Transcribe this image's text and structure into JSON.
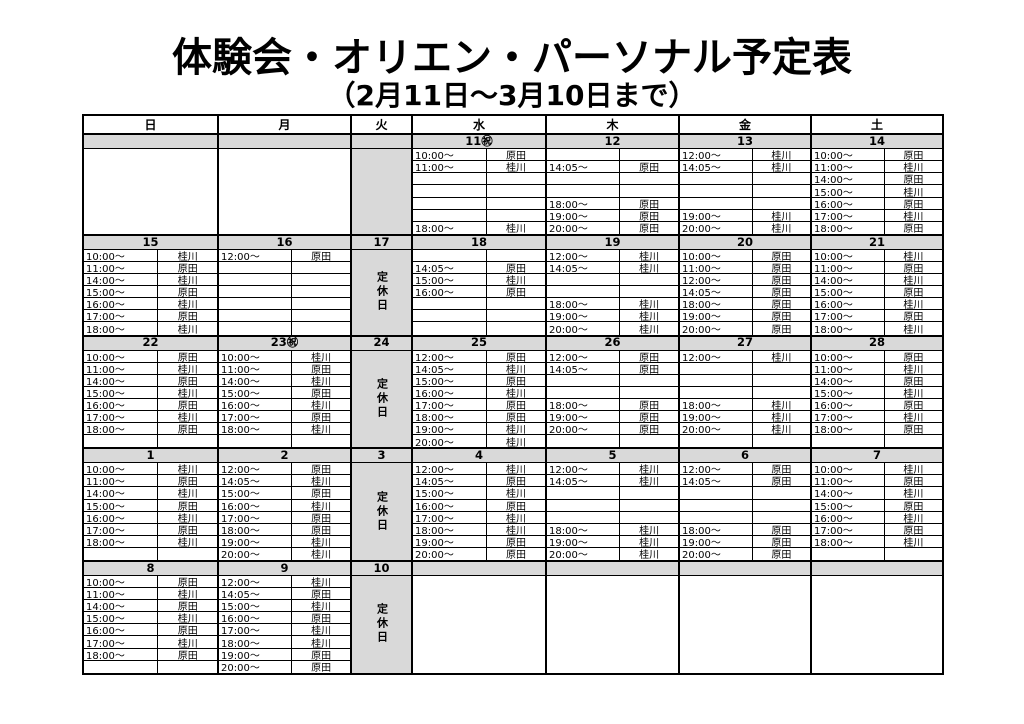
{
  "title": "体験会・オリエン・パーソナル予定表",
  "subtitle": "（2月11日～3月10日まで）",
  "day_headers": [
    "日",
    "月",
    "火",
    "水",
    "木",
    "金",
    "土"
  ],
  "closed_label": "定休日",
  "staff": [
    "原田",
    "桂川"
  ],
  "colors": {
    "band_gray": "#d9d9d9",
    "border": "#000000",
    "text": "#000000"
  },
  "weeks": [
    {
      "rows": 7,
      "days": [
        {
          "date": "",
          "type": "blank"
        },
        {
          "date": "",
          "type": "blank"
        },
        {
          "date": "",
          "type": "closed_blank"
        },
        {
          "date": "11㊗",
          "type": "slots",
          "slots": [
            {
              "t": "10:00～",
              "n": "原田"
            },
            {
              "t": "11:00～",
              "n": "桂川"
            },
            null,
            null,
            null,
            null,
            {
              "t": "18:00～",
              "n": "桂川"
            }
          ]
        },
        {
          "date": "12",
          "type": "slots",
          "slots": [
            null,
            {
              "t": "14:05～",
              "n": "原田"
            },
            null,
            null,
            {
              "t": "18:00～",
              "n": "原田"
            },
            {
              "t": "19:00～",
              "n": "原田"
            },
            {
              "t": "20:00～",
              "n": "原田"
            }
          ]
        },
        {
          "date": "13",
          "type": "slots",
          "slots": [
            {
              "t": "12:00～",
              "n": "桂川"
            },
            {
              "t": "14:05～",
              "n": "桂川"
            },
            null,
            null,
            null,
            {
              "t": "19:00～",
              "n": "桂川"
            },
            {
              "t": "20:00～",
              "n": "桂川"
            }
          ]
        },
        {
          "date": "14",
          "type": "slots",
          "slots": [
            {
              "t": "10:00～",
              "n": "原田"
            },
            {
              "t": "11:00～",
              "n": "桂川"
            },
            {
              "t": "14:00～",
              "n": "原田"
            },
            {
              "t": "15:00～",
              "n": "桂川"
            },
            {
              "t": "16:00～",
              "n": "原田"
            },
            {
              "t": "17:00～",
              "n": "桂川"
            },
            {
              "t": "18:00～",
              "n": "原田"
            }
          ]
        }
      ]
    },
    {
      "rows": 7,
      "days": [
        {
          "date": "15",
          "type": "slots",
          "slots": [
            {
              "t": "10:00～",
              "n": "桂川"
            },
            {
              "t": "11:00～",
              "n": "原田"
            },
            {
              "t": "14:00～",
              "n": "桂川"
            },
            {
              "t": "15:00～",
              "n": "原田"
            },
            {
              "t": "16:00～",
              "n": "桂川"
            },
            {
              "t": "17:00～",
              "n": "原田"
            },
            {
              "t": "18:00～",
              "n": "桂川"
            }
          ]
        },
        {
          "date": "16",
          "type": "slots",
          "slots": [
            {
              "t": "12:00～",
              "n": "原田"
            },
            null,
            null,
            null,
            null,
            null,
            null
          ]
        },
        {
          "date": "17",
          "type": "closed"
        },
        {
          "date": "18",
          "type": "slots",
          "slots": [
            null,
            {
              "t": "14:05～",
              "n": "原田"
            },
            {
              "t": "15:00～",
              "n": "桂川"
            },
            {
              "t": "16:00～",
              "n": "原田"
            },
            null,
            null,
            null
          ]
        },
        {
          "date": "19",
          "type": "slots",
          "slots": [
            {
              "t": "12:00～",
              "n": "桂川"
            },
            {
              "t": "14:05～",
              "n": "桂川"
            },
            null,
            null,
            {
              "t": "18:00～",
              "n": "桂川"
            },
            {
              "t": "19:00～",
              "n": "桂川"
            },
            {
              "t": "20:00～",
              "n": "桂川"
            }
          ]
        },
        {
          "date": "20",
          "type": "slots",
          "slots": [
            {
              "t": "10:00～",
              "n": "原田"
            },
            {
              "t": "11:00～",
              "n": "原田"
            },
            {
              "t": "12:00～",
              "n": "原田"
            },
            {
              "t": "14:05～",
              "n": "原田"
            },
            {
              "t": "18:00～",
              "n": "原田"
            },
            {
              "t": "19:00～",
              "n": "原田"
            },
            {
              "t": "20:00～",
              "n": "原田"
            }
          ]
        },
        {
          "date": "21",
          "type": "slots",
          "slots": [
            {
              "t": "10:00～",
              "n": "桂川"
            },
            {
              "t": "11:00～",
              "n": "原田"
            },
            {
              "t": "14:00～",
              "n": "桂川"
            },
            {
              "t": "15:00～",
              "n": "原田"
            },
            {
              "t": "16:00～",
              "n": "桂川"
            },
            {
              "t": "17:00～",
              "n": "原田"
            },
            {
              "t": "18:00～",
              "n": "桂川"
            }
          ]
        }
      ]
    },
    {
      "rows": 8,
      "days": [
        {
          "date": "22",
          "type": "slots",
          "slots": [
            {
              "t": "10:00～",
              "n": "原田"
            },
            {
              "t": "11:00～",
              "n": "桂川"
            },
            {
              "t": "14:00～",
              "n": "原田"
            },
            {
              "t": "15:00～",
              "n": "桂川"
            },
            {
              "t": "16:00～",
              "n": "原田"
            },
            {
              "t": "17:00～",
              "n": "桂川"
            },
            {
              "t": "18:00～",
              "n": "原田"
            },
            null
          ]
        },
        {
          "date": "23㊗",
          "type": "slots",
          "slots": [
            {
              "t": "10:00～",
              "n": "桂川"
            },
            {
              "t": "11:00～",
              "n": "原田"
            },
            {
              "t": "14:00～",
              "n": "桂川"
            },
            {
              "t": "15:00～",
              "n": "原田"
            },
            {
              "t": "16:00～",
              "n": "桂川"
            },
            {
              "t": "17:00～",
              "n": "原田"
            },
            {
              "t": "18:00～",
              "n": "桂川"
            },
            null
          ]
        },
        {
          "date": "24",
          "type": "closed"
        },
        {
          "date": "25",
          "type": "slots",
          "slots": [
            {
              "t": "12:00～",
              "n": "原田"
            },
            {
              "t": "14:05～",
              "n": "桂川"
            },
            {
              "t": "15:00～",
              "n": "原田"
            },
            {
              "t": "16:00～",
              "n": "桂川"
            },
            {
              "t": "17:00～",
              "n": "原田"
            },
            {
              "t": "18:00～",
              "n": "原田"
            },
            {
              "t": "19:00～",
              "n": "桂川"
            },
            {
              "t": "20:00～",
              "n": "桂川"
            }
          ]
        },
        {
          "date": "26",
          "type": "slots",
          "slots": [
            {
              "t": "12:00～",
              "n": "原田"
            },
            {
              "t": "14:05～",
              "n": "原田"
            },
            null,
            null,
            {
              "t": "18:00～",
              "n": "原田"
            },
            {
              "t": "19:00～",
              "n": "原田"
            },
            {
              "t": "20:00～",
              "n": "原田"
            },
            null
          ]
        },
        {
          "date": "27",
          "type": "slots",
          "slots": [
            {
              "t": "12:00～",
              "n": "桂川"
            },
            null,
            null,
            null,
            {
              "t": "18:00～",
              "n": "桂川"
            },
            {
              "t": "19:00～",
              "n": "桂川"
            },
            {
              "t": "20:00～",
              "n": "桂川"
            },
            null
          ]
        },
        {
          "date": "28",
          "type": "slots",
          "slots": [
            {
              "t": "10:00～",
              "n": "原田"
            },
            {
              "t": "11:00～",
              "n": "桂川"
            },
            {
              "t": "14:00～",
              "n": "原田"
            },
            {
              "t": "15:00～",
              "n": "桂川"
            },
            {
              "t": "16:00～",
              "n": "原田"
            },
            {
              "t": "17:00～",
              "n": "桂川"
            },
            {
              "t": "18:00～",
              "n": "原田"
            },
            null
          ]
        }
      ]
    },
    {
      "rows": 8,
      "days": [
        {
          "date": "1",
          "type": "slots",
          "slots": [
            {
              "t": "10:00～",
              "n": "桂川"
            },
            {
              "t": "11:00～",
              "n": "原田"
            },
            {
              "t": "14:00～",
              "n": "桂川"
            },
            {
              "t": "15:00～",
              "n": "原田"
            },
            {
              "t": "16:00～",
              "n": "桂川"
            },
            {
              "t": "17:00～",
              "n": "原田"
            },
            {
              "t": "18:00～",
              "n": "桂川"
            },
            null
          ]
        },
        {
          "date": "2",
          "type": "slots",
          "slots": [
            {
              "t": "12:00～",
              "n": "原田"
            },
            {
              "t": "14:05～",
              "n": "桂川"
            },
            {
              "t": "15:00～",
              "n": "原田"
            },
            {
              "t": "16:00～",
              "n": "桂川"
            },
            {
              "t": "17:00～",
              "n": "原田"
            },
            {
              "t": "18:00～",
              "n": "原田"
            },
            {
              "t": "19:00～",
              "n": "桂川"
            },
            {
              "t": "20:00～",
              "n": "桂川"
            }
          ]
        },
        {
          "date": "3",
          "type": "closed"
        },
        {
          "date": "4",
          "type": "slots",
          "slots": [
            {
              "t": "12:00～",
              "n": "桂川"
            },
            {
              "t": "14:05～",
              "n": "原田"
            },
            {
              "t": "15:00～",
              "n": "桂川"
            },
            {
              "t": "16:00～",
              "n": "原田"
            },
            {
              "t": "17:00～",
              "n": "桂川"
            },
            {
              "t": "18:00～",
              "n": "桂川"
            },
            {
              "t": "19:00～",
              "n": "原田"
            },
            {
              "t": "20:00～",
              "n": "原田"
            }
          ]
        },
        {
          "date": "5",
          "type": "slots",
          "slots": [
            {
              "t": "12:00～",
              "n": "桂川"
            },
            {
              "t": "14:05～",
              "n": "桂川"
            },
            null,
            null,
            null,
            {
              "t": "18:00～",
              "n": "桂川"
            },
            {
              "t": "19:00～",
              "n": "桂川"
            },
            {
              "t": "20:00～",
              "n": "桂川"
            }
          ]
        },
        {
          "date": "6",
          "type": "slots",
          "slots": [
            {
              "t": "12:00～",
              "n": "原田"
            },
            {
              "t": "14:05～",
              "n": "原田"
            },
            null,
            null,
            null,
            {
              "t": "18:00～",
              "n": "原田"
            },
            {
              "t": "19:00～",
              "n": "原田"
            },
            {
              "t": "20:00～",
              "n": "原田"
            }
          ]
        },
        {
          "date": "7",
          "type": "slots",
          "slots": [
            {
              "t": "10:00～",
              "n": "桂川"
            },
            {
              "t": "11:00～",
              "n": "原田"
            },
            {
              "t": "14:00～",
              "n": "桂川"
            },
            {
              "t": "15:00～",
              "n": "原田"
            },
            {
              "t": "16:00～",
              "n": "桂川"
            },
            {
              "t": "17:00～",
              "n": "原田"
            },
            {
              "t": "18:00～",
              "n": "桂川"
            },
            null
          ]
        }
      ]
    },
    {
      "rows": 8,
      "days": [
        {
          "date": "8",
          "type": "slots",
          "slots": [
            {
              "t": "10:00～",
              "n": "原田"
            },
            {
              "t": "11:00～",
              "n": "桂川"
            },
            {
              "t": "14:00～",
              "n": "原田"
            },
            {
              "t": "15:00～",
              "n": "桂川"
            },
            {
              "t": "16:00～",
              "n": "原田"
            },
            {
              "t": "17:00～",
              "n": "桂川"
            },
            {
              "t": "18:00～",
              "n": "原田"
            },
            null
          ]
        },
        {
          "date": "9",
          "type": "slots",
          "slots": [
            {
              "t": "12:00～",
              "n": "桂川"
            },
            {
              "t": "14:05～",
              "n": "原田"
            },
            {
              "t": "15:00～",
              "n": "桂川"
            },
            {
              "t": "16:00～",
              "n": "原田"
            },
            {
              "t": "17:00～",
              "n": "桂川"
            },
            {
              "t": "18:00～",
              "n": "桂川"
            },
            {
              "t": "19:00～",
              "n": "原田"
            },
            {
              "t": "20:00～",
              "n": "原田"
            }
          ]
        },
        {
          "date": "10",
          "type": "closed"
        },
        {
          "date": "",
          "type": "blank"
        },
        {
          "date": "",
          "type": "blank"
        },
        {
          "date": "",
          "type": "blank"
        },
        {
          "date": "",
          "type": "blank"
        }
      ]
    }
  ]
}
